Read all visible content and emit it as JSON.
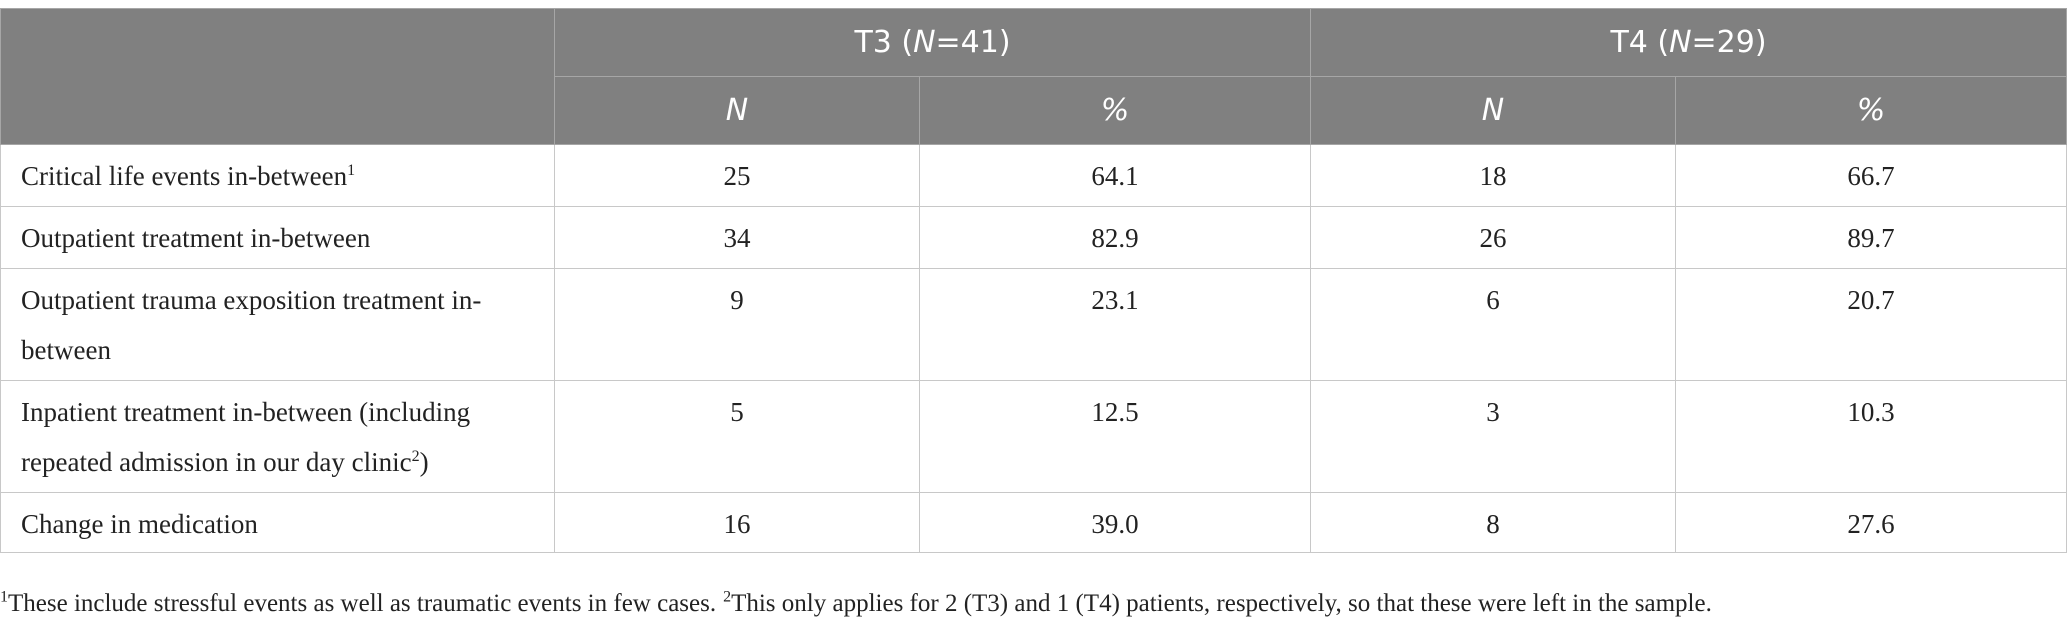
{
  "header": {
    "groups": [
      {
        "prefix": "T3 (",
        "italic": "N",
        "suffix": "=41)"
      },
      {
        "prefix": "T4 (",
        "italic": "N",
        "suffix": "=29)"
      }
    ],
    "subheaders": [
      "N",
      "%",
      "N",
      "%"
    ]
  },
  "table": {
    "rows": [
      {
        "label": "Critical life events in-between",
        "sup": "1",
        "cells": [
          "25",
          "64.1",
          "18",
          "66.7"
        ]
      },
      {
        "label": "Outpatient treatment in-between",
        "cells": [
          "34",
          "82.9",
          "26",
          "89.7"
        ]
      },
      {
        "label": "Outpatient trauma exposition treatment in-between",
        "cells": [
          "9",
          "23.1",
          "6",
          "20.7"
        ]
      },
      {
        "label": "Inpatient treatment in-between (including repeated admission in our day clinic",
        "sup": "2",
        "label_end": ")",
        "cells": [
          "5",
          "12.5",
          "3",
          "10.3"
        ]
      },
      {
        "label": "Change in medication",
        "cells": [
          "16",
          "39.0",
          "8",
          "27.6"
        ]
      }
    ]
  },
  "footnote": {
    "parts": [
      {
        "sup": "1",
        "text": "These include stressful events as well as traumatic events in few cases."
      },
      {
        "sup": "2",
        "text": "This only applies for 2 (T3) and 1 (T4) patients, respectively, so that these were left in the sample."
      }
    ]
  }
}
